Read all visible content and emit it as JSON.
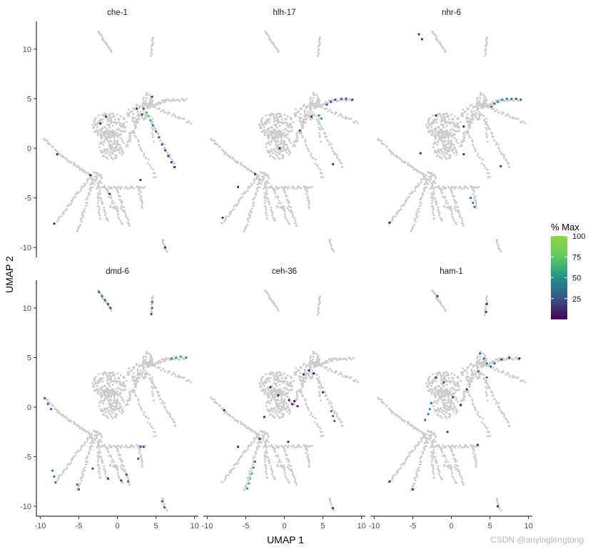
{
  "chart_data": {
    "type": "scatter",
    "xlabel": "UMAP 1",
    "ylabel": "UMAP 2",
    "xlim": [
      -10.5,
      10.5
    ],
    "ylim": [
      -11,
      12.8
    ],
    "x_ticks": [
      -10,
      -5,
      0,
      5,
      10
    ],
    "y_ticks": [
      -10,
      -5,
      0,
      5,
      10
    ],
    "x_tick_labels": [
      "-10",
      "-5",
      "0",
      "5",
      "10"
    ],
    "y_tick_labels": [
      "-10",
      "-5",
      "0",
      "5",
      "10"
    ],
    "background_point_color": "#cccccc",
    "grid": false,
    "legend": {
      "title": "% Max",
      "placement": "right",
      "ticks": [
        25,
        50,
        75,
        100
      ],
      "tick_labels": [
        "25",
        "50",
        "75",
        "100"
      ],
      "range": [
        0,
        100
      ],
      "colormap": [
        "#440154",
        "#3b528b",
        "#21918c",
        "#5ec962",
        "#8fd744"
      ]
    },
    "panels": [
      {
        "title": "che-1",
        "expressing": [
          {
            "x": 3.8,
            "y": 3.6,
            "v": 70
          },
          {
            "x": 4.0,
            "y": 3.2,
            "v": 80
          },
          {
            "x": 4.3,
            "y": 2.8,
            "v": 60
          },
          {
            "x": 4.6,
            "y": 2.3,
            "v": 40
          },
          {
            "x": 5.0,
            "y": 1.7,
            "v": 30
          },
          {
            "x": 5.4,
            "y": 1.1,
            "v": 25
          },
          {
            "x": 5.8,
            "y": 0.4,
            "v": 20
          },
          {
            "x": 6.2,
            "y": -0.2,
            "v": 20
          },
          {
            "x": 6.6,
            "y": -0.8,
            "v": 15
          },
          {
            "x": 7.0,
            "y": -1.4,
            "v": 12
          },
          {
            "x": 7.4,
            "y": -1.9,
            "v": 10
          },
          {
            "x": 3.4,
            "y": 4.0,
            "v": 35
          },
          {
            "x": 3.2,
            "y": 3.4,
            "v": 15
          },
          {
            "x": 4.5,
            "y": 5.2,
            "v": 12
          },
          {
            "x": -1.5,
            "y": 3.2,
            "v": 10
          },
          {
            "x": -2.2,
            "y": 2.5,
            "v": 8
          },
          {
            "x": 2.5,
            "y": 4.0,
            "v": 10
          },
          {
            "x": -7.8,
            "y": -0.6,
            "v": 8
          },
          {
            "x": -3.5,
            "y": -2.7,
            "v": 8
          },
          {
            "x": -1.0,
            "y": -4.6,
            "v": 8
          },
          {
            "x": -8.2,
            "y": -7.6,
            "v": 10
          },
          {
            "x": 6.2,
            "y": -10.0,
            "v": 8
          },
          {
            "x": 3.0,
            "y": -3.2,
            "v": 8
          }
        ]
      },
      {
        "title": "hlh-17",
        "expressing": [
          {
            "x": 5.5,
            "y": 4.4,
            "v": 20
          },
          {
            "x": 6.0,
            "y": 4.7,
            "v": 25
          },
          {
            "x": 6.6,
            "y": 4.9,
            "v": 20
          },
          {
            "x": 7.4,
            "y": 5.0,
            "v": 30
          },
          {
            "x": 8.0,
            "y": 5.0,
            "v": 20
          },
          {
            "x": 8.8,
            "y": 4.9,
            "v": 15
          },
          {
            "x": 4.5,
            "y": 3.3,
            "v": 45
          },
          {
            "x": 4.8,
            "y": 3.0,
            "v": 50
          },
          {
            "x": 3.5,
            "y": 3.2,
            "v": 12
          },
          {
            "x": -3.8,
            "y": -2.6,
            "v": 8
          },
          {
            "x": -6.0,
            "y": -3.9,
            "v": 8
          },
          {
            "x": 6.3,
            "y": -1.6,
            "v": 10
          },
          {
            "x": -8.0,
            "y": -7.0,
            "v": 8
          },
          {
            "x": 2.0,
            "y": 1.8,
            "v": 10
          },
          {
            "x": -0.6,
            "y": 0.0,
            "v": 8
          }
        ]
      },
      {
        "title": "nhr-6",
        "expressing": [
          {
            "x": 5.2,
            "y": 4.2,
            "v": 30
          },
          {
            "x": 5.6,
            "y": 4.5,
            "v": 40
          },
          {
            "x": 6.0,
            "y": 4.7,
            "v": 50
          },
          {
            "x": 6.6,
            "y": 4.9,
            "v": 45
          },
          {
            "x": 7.2,
            "y": 5.0,
            "v": 40
          },
          {
            "x": 7.8,
            "y": 5.0,
            "v": 35
          },
          {
            "x": 8.4,
            "y": 5.0,
            "v": 30
          },
          {
            "x": 9.0,
            "y": 4.9,
            "v": 25
          },
          {
            "x": 2.5,
            "y": -5.0,
            "v": 30
          },
          {
            "x": 2.8,
            "y": -5.5,
            "v": 40
          },
          {
            "x": 3.0,
            "y": -5.9,
            "v": 35
          },
          {
            "x": -4.2,
            "y": 11.5,
            "v": 12
          },
          {
            "x": -3.8,
            "y": 11.0,
            "v": 10
          },
          {
            "x": -2.0,
            "y": 3.3,
            "v": 10
          },
          {
            "x": 1.6,
            "y": 2.2,
            "v": 8
          },
          {
            "x": -8.0,
            "y": -7.5,
            "v": 8
          },
          {
            "x": -4.0,
            "y": -0.5,
            "v": 8
          },
          {
            "x": 6.4,
            "y": -1.8,
            "v": 8
          },
          {
            "x": 1.6,
            "y": -0.6,
            "v": 8
          }
        ]
      },
      {
        "title": "dmd-6",
        "expressing": [
          {
            "x": -2.4,
            "y": 11.6,
            "v": 25
          },
          {
            "x": -2.0,
            "y": 11.2,
            "v": 30
          },
          {
            "x": -1.6,
            "y": 10.8,
            "v": 25
          },
          {
            "x": -1.2,
            "y": 10.4,
            "v": 20
          },
          {
            "x": -0.9,
            "y": 10.0,
            "v": 15
          },
          {
            "x": 4.5,
            "y": 10.6,
            "v": 40
          },
          {
            "x": 4.5,
            "y": 10.0,
            "v": 30
          },
          {
            "x": 4.4,
            "y": 9.4,
            "v": 20
          },
          {
            "x": 7.0,
            "y": 4.9,
            "v": 40
          },
          {
            "x": 7.6,
            "y": 5.0,
            "v": 55
          },
          {
            "x": 8.2,
            "y": 5.1,
            "v": 55
          },
          {
            "x": 8.9,
            "y": 5.0,
            "v": 45
          },
          {
            "x": -9.4,
            "y": 0.9,
            "v": 35
          },
          {
            "x": -9.0,
            "y": 0.3,
            "v": 30
          },
          {
            "x": -8.6,
            "y": -0.2,
            "v": 20
          },
          {
            "x": -8.4,
            "y": -6.4,
            "v": 35
          },
          {
            "x": -8.2,
            "y": -7.0,
            "v": 35
          },
          {
            "x": -8.0,
            "y": -7.6,
            "v": 30
          },
          {
            "x": -5.2,
            "y": -7.8,
            "v": 30
          },
          {
            "x": -5.0,
            "y": -8.3,
            "v": 25
          },
          {
            "x": 1.2,
            "y": -6.8,
            "v": 30
          },
          {
            "x": 1.4,
            "y": -7.5,
            "v": 35
          },
          {
            "x": 5.8,
            "y": -9.5,
            "v": 30
          },
          {
            "x": 6.1,
            "y": -10.1,
            "v": 30
          },
          {
            "x": 3.0,
            "y": -4.0,
            "v": 25
          },
          {
            "x": 3.4,
            "y": -4.0,
            "v": 20
          },
          {
            "x": 2.7,
            "y": -5.2,
            "v": 20
          },
          {
            "x": 0.5,
            "y": -7.4,
            "v": 15
          },
          {
            "x": -1.2,
            "y": -7.2,
            "v": 15
          },
          {
            "x": -3.2,
            "y": -6.2,
            "v": 15
          }
        ]
      },
      {
        "title": "ceh-36",
        "expressing": [
          {
            "x": -4.8,
            "y": -8.2,
            "v": 50
          },
          {
            "x": -4.6,
            "y": -7.7,
            "v": 65
          },
          {
            "x": -4.4,
            "y": -7.2,
            "v": 70
          },
          {
            "x": -4.2,
            "y": -6.7,
            "v": 60
          },
          {
            "x": -4.0,
            "y": -6.1,
            "v": 45
          },
          {
            "x": -3.8,
            "y": -5.5,
            "v": 30
          },
          {
            "x": 6.1,
            "y": -0.4,
            "v": 40
          },
          {
            "x": 6.3,
            "y": -0.9,
            "v": 35
          },
          {
            "x": 6.5,
            "y": -1.4,
            "v": 25
          },
          {
            "x": 1.0,
            "y": 0.3,
            "v": 5
          },
          {
            "x": 1.3,
            "y": 0.6,
            "v": 5
          },
          {
            "x": 1.7,
            "y": 0.1,
            "v": 5
          },
          {
            "x": 0.6,
            "y": 0.7,
            "v": 5
          },
          {
            "x": 2.5,
            "y": 3.3,
            "v": 8
          },
          {
            "x": 3.2,
            "y": 3.7,
            "v": 8
          },
          {
            "x": 3.8,
            "y": 3.4,
            "v": 8
          },
          {
            "x": -1.8,
            "y": 2.0,
            "v": 5
          },
          {
            "x": -0.8,
            "y": 1.2,
            "v": 5
          },
          {
            "x": -2.6,
            "y": -1.0,
            "v": 5
          },
          {
            "x": -3.2,
            "y": -3.2,
            "v": 8
          },
          {
            "x": -7.8,
            "y": -0.3,
            "v": 5
          },
          {
            "x": 0.5,
            "y": -3.5,
            "v": 5
          },
          {
            "x": 5.0,
            "y": 1.5,
            "v": 8
          },
          {
            "x": 6.3,
            "y": -10.2,
            "v": 8
          },
          {
            "x": -6.0,
            "y": -4.0,
            "v": 8
          }
        ]
      },
      {
        "title": "ham-1",
        "expressing": [
          {
            "x": 3.7,
            "y": 5.4,
            "v": 30
          },
          {
            "x": 4.2,
            "y": 4.9,
            "v": 35
          },
          {
            "x": 4.6,
            "y": 4.4,
            "v": 40
          },
          {
            "x": 5.1,
            "y": 4.1,
            "v": 35
          },
          {
            "x": 5.6,
            "y": 4.4,
            "v": 30
          },
          {
            "x": 3.5,
            "y": 3.6,
            "v": 25
          },
          {
            "x": 4.6,
            "y": 3.0,
            "v": 40
          },
          {
            "x": -3.0,
            "y": -0.7,
            "v": 40
          },
          {
            "x": -2.8,
            "y": -0.2,
            "v": 45
          },
          {
            "x": -2.6,
            "y": 0.4,
            "v": 35
          },
          {
            "x": -3.4,
            "y": -1.3,
            "v": 30
          },
          {
            "x": 0.2,
            "y": 1.0,
            "v": 15
          },
          {
            "x": -1.0,
            "y": 2.5,
            "v": 15
          },
          {
            "x": -2.0,
            "y": 3.0,
            "v": 10
          },
          {
            "x": 1.2,
            "y": 0.2,
            "v": 10
          },
          {
            "x": 6.5,
            "y": 4.8,
            "v": 12
          },
          {
            "x": 7.5,
            "y": 5.0,
            "v": 10
          },
          {
            "x": 8.8,
            "y": 4.9,
            "v": 8
          },
          {
            "x": 4.6,
            "y": 10.4,
            "v": 8
          },
          {
            "x": 4.5,
            "y": 9.6,
            "v": 8
          },
          {
            "x": -1.8,
            "y": 11.2,
            "v": 10
          },
          {
            "x": -8.0,
            "y": -7.5,
            "v": 8
          },
          {
            "x": -5.0,
            "y": -8.3,
            "v": 8
          },
          {
            "x": 6.0,
            "y": -10.0,
            "v": 8
          },
          {
            "x": 3.4,
            "y": -3.8,
            "v": 8
          },
          {
            "x": -0.5,
            "y": -2.5,
            "v": 8
          },
          {
            "x": 2.0,
            "y": 1.8,
            "v": 12
          }
        ]
      }
    ]
  },
  "watermark": "CSDN @anyinglengtong"
}
